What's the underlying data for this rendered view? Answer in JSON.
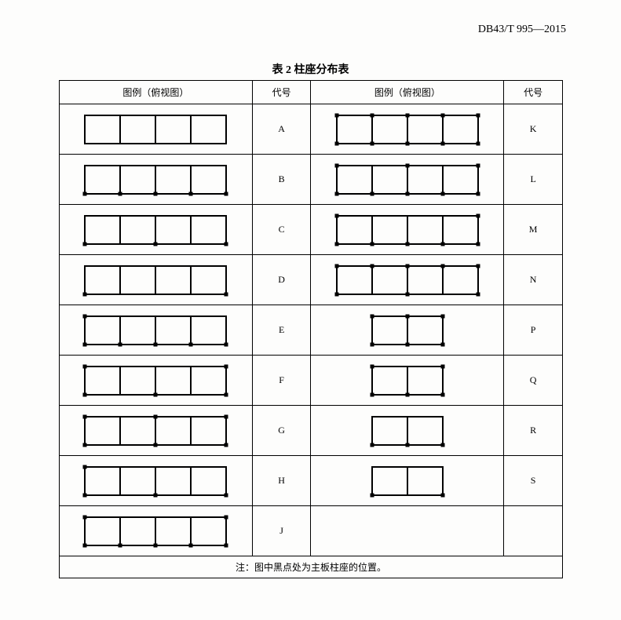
{
  "doc_header": "DB43/T 995—2015",
  "title": "表 2  柱座分布表",
  "headers": {
    "diagram": "图例（俯视图）",
    "code": "代号"
  },
  "footnote": "注：图中黑点处为主板柱座的位置。",
  "style": {
    "background": "#fdfdfc",
    "stroke": "#000000",
    "stroke_width": 2,
    "dot_size": 5,
    "cell_size": 45,
    "rect_height": 36,
    "font_family": "SimSun",
    "title_fontsize": 14,
    "text_fontsize": 12
  },
  "rows": [
    {
      "left": {
        "cells": 4,
        "dots": [],
        "code": "A"
      },
      "right": {
        "cells": 4,
        "dots": [
          [
            0,
            0
          ],
          [
            1,
            0
          ],
          [
            2,
            0
          ],
          [
            3,
            0
          ],
          [
            4,
            0
          ],
          [
            0,
            1
          ],
          [
            1,
            1
          ],
          [
            2,
            1
          ],
          [
            3,
            1
          ],
          [
            4,
            1
          ]
        ],
        "code": "K"
      }
    },
    {
      "left": {
        "cells": 4,
        "dots": [
          [
            0,
            1
          ],
          [
            1,
            1
          ],
          [
            2,
            1
          ],
          [
            3,
            1
          ],
          [
            4,
            1
          ]
        ],
        "code": "B"
      },
      "right": {
        "cells": 4,
        "dots": [
          [
            0,
            0
          ],
          [
            2,
            0
          ],
          [
            4,
            0
          ],
          [
            0,
            1
          ],
          [
            1,
            1
          ],
          [
            2,
            1
          ],
          [
            3,
            1
          ],
          [
            4,
            1
          ]
        ],
        "code": "L"
      }
    },
    {
      "left": {
        "cells": 4,
        "dots": [
          [
            0,
            1
          ],
          [
            2,
            1
          ],
          [
            4,
            1
          ]
        ],
        "code": "C"
      },
      "right": {
        "cells": 4,
        "dots": [
          [
            0,
            0
          ],
          [
            4,
            0
          ],
          [
            0,
            1
          ],
          [
            1,
            1
          ],
          [
            2,
            1
          ],
          [
            3,
            1
          ],
          [
            4,
            1
          ]
        ],
        "code": "M"
      }
    },
    {
      "left": {
        "cells": 4,
        "dots": [
          [
            0,
            1
          ],
          [
            4,
            1
          ]
        ],
        "code": "D"
      },
      "right": {
        "cells": 4,
        "dots": [
          [
            0,
            0
          ],
          [
            1,
            0
          ],
          [
            2,
            0
          ],
          [
            3,
            0
          ],
          [
            4,
            0
          ],
          [
            0,
            1
          ],
          [
            2,
            1
          ],
          [
            4,
            1
          ]
        ],
        "code": "N"
      }
    },
    {
      "left": {
        "cells": 4,
        "dots": [
          [
            0,
            0
          ],
          [
            0,
            1
          ],
          [
            1,
            1
          ],
          [
            2,
            1
          ],
          [
            3,
            1
          ],
          [
            4,
            1
          ]
        ],
        "code": "E"
      },
      "right": {
        "cells": 2,
        "dots": [
          [
            0,
            0
          ],
          [
            1,
            0
          ],
          [
            2,
            0
          ],
          [
            0,
            1
          ],
          [
            1,
            1
          ],
          [
            2,
            1
          ]
        ],
        "code": "P"
      }
    },
    {
      "left": {
        "cells": 4,
        "dots": [
          [
            0,
            0
          ],
          [
            4,
            0
          ],
          [
            0,
            1
          ],
          [
            2,
            1
          ],
          [
            4,
            1
          ]
        ],
        "code": "F"
      },
      "right": {
        "cells": 2,
        "dots": [
          [
            0,
            0
          ],
          [
            2,
            0
          ],
          [
            0,
            1
          ],
          [
            1,
            1
          ],
          [
            2,
            1
          ]
        ],
        "code": "Q"
      }
    },
    {
      "left": {
        "cells": 4,
        "dots": [
          [
            0,
            0
          ],
          [
            2,
            0
          ],
          [
            4,
            0
          ],
          [
            0,
            1
          ],
          [
            2,
            1
          ],
          [
            4,
            1
          ]
        ],
        "code": "G"
      },
      "right": {
        "cells": 2,
        "dots": [
          [
            0,
            1
          ],
          [
            1,
            1
          ],
          [
            2,
            1
          ]
        ],
        "code": "R"
      }
    },
    {
      "left": {
        "cells": 4,
        "dots": [
          [
            0,
            0
          ],
          [
            0,
            1
          ],
          [
            2,
            1
          ],
          [
            4,
            1
          ]
        ],
        "code": "H"
      },
      "right": {
        "cells": 2,
        "dots": [
          [
            0,
            1
          ],
          [
            2,
            1
          ]
        ],
        "code": "S"
      }
    },
    {
      "left": {
        "cells": 4,
        "dots": [
          [
            0,
            0
          ],
          [
            4,
            0
          ],
          [
            0,
            1
          ],
          [
            1,
            1
          ],
          [
            2,
            1
          ],
          [
            3,
            1
          ],
          [
            4,
            1
          ]
        ],
        "code": "J"
      },
      "right": null
    }
  ]
}
